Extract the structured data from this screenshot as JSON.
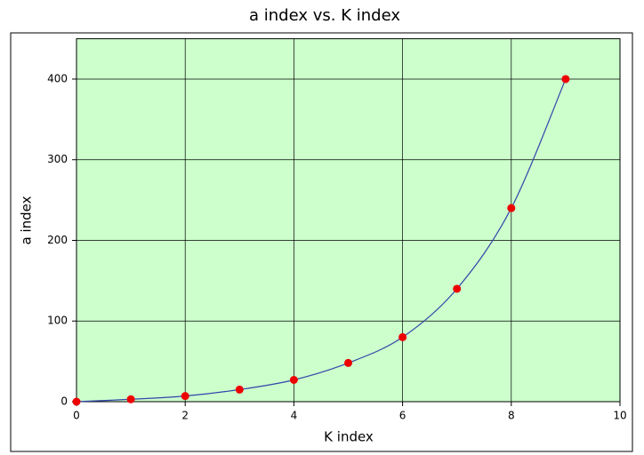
{
  "chart_data": {
    "type": "scatter",
    "title": "a index vs. K index",
    "x_label": "K index",
    "y_label": "a index",
    "x": [
      0,
      1,
      2,
      3,
      4,
      5,
      6,
      7,
      8,
      9
    ],
    "values": [
      0,
      3,
      7,
      15,
      27,
      48,
      80,
      140,
      240,
      400
    ],
    "color": "#ee0000",
    "line_color": "#3344aa",
    "background": "#ccffcc",
    "xlim": [
      0,
      10
    ],
    "ylim": [
      0,
      450
    ],
    "xticks": [
      0,
      2,
      4,
      6,
      8,
      10
    ],
    "yticks": [
      0,
      100,
      200,
      300,
      400
    ],
    "grid": true
  }
}
